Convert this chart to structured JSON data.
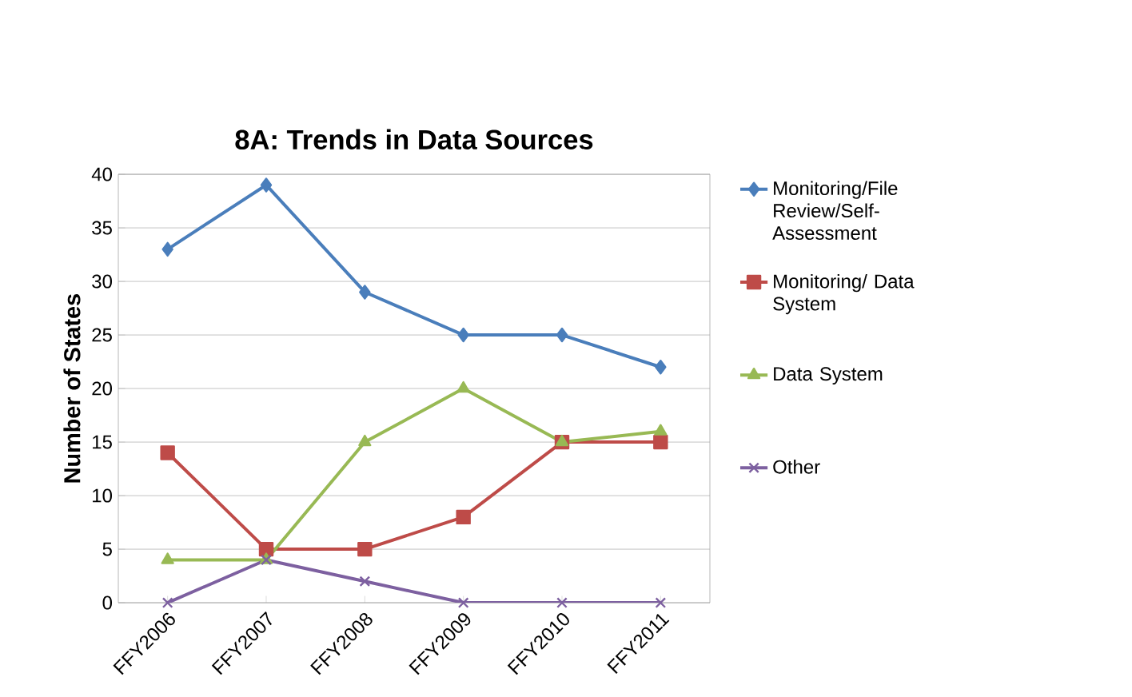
{
  "chart_data": {
    "type": "line",
    "title": "8A: Trends in Data Sources",
    "ylabel": "Number of States",
    "categories": [
      "FFY2006",
      "FFY2007",
      "FFY2008",
      "FFY2009",
      "FFY2010",
      "FFY2011"
    ],
    "series": [
      {
        "name": "Monitoring/File Review/Self-Assessment",
        "color": "#4a7ebb",
        "marker": "diamond",
        "values": [
          33,
          39,
          29,
          25,
          25,
          22
        ]
      },
      {
        "name": "Monitoring/ Data System",
        "color": "#be4b48",
        "marker": "square",
        "values": [
          14,
          5,
          5,
          8,
          15,
          15
        ]
      },
      {
        "name": "Data System",
        "color": "#98b954",
        "marker": "triangle",
        "values": [
          4,
          4,
          15,
          20,
          15,
          16
        ]
      },
      {
        "name": "Other",
        "color": "#7d60a0",
        "marker": "cross",
        "values": [
          0,
          4,
          2,
          0,
          0,
          0
        ]
      }
    ],
    "ylim": [
      0,
      40
    ],
    "yticks": [
      0,
      5,
      10,
      15,
      20,
      25,
      30,
      35,
      40
    ],
    "grid": "y",
    "legend": "right",
    "line_style": "solid"
  }
}
